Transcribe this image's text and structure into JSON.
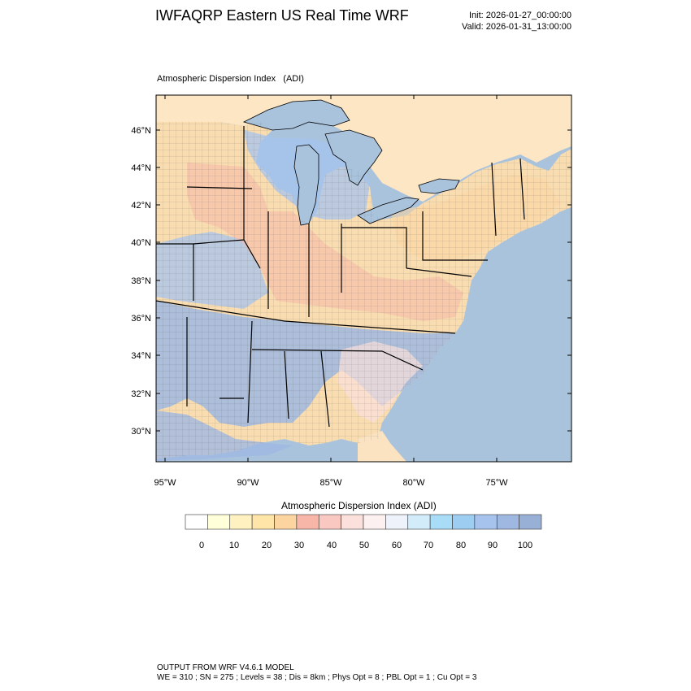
{
  "header": {
    "title": "IWFAQRP Eastern US Real Time WRF",
    "init": "Init: 2026-01-27_00:00:00",
    "valid": "Valid: 2026-01-31_13:00:00"
  },
  "map": {
    "plot_title": "Atmospheric Dispersion Index   (ADI)",
    "lat_labels": [
      "46°N",
      "44°N",
      "42°N",
      "40°N",
      "38°N",
      "36°N",
      "34°N",
      "32°N",
      "30°N"
    ],
    "lon_labels": [
      "95°W",
      "90°W",
      "85°W",
      "80°W",
      "75°W"
    ],
    "colors": {
      "ocean": "#a9c3dd",
      "land": "#f9ddb0",
      "lake": "#a9c3dd",
      "canada": "#fce6c4"
    }
  },
  "legend": {
    "title": "Atmospheric Dispersion Index  (ADI)",
    "tick_labels": [
      "0",
      "10",
      "20",
      "30",
      "40",
      "50",
      "60",
      "70",
      "80",
      "90",
      "100"
    ],
    "colors": [
      "#ffffff",
      "#ffffd9",
      "#fff2c0",
      "#ffe6a8",
      "#fcd4a0",
      "#f7b6a8",
      "#f9c8c0",
      "#fbe0dc",
      "#fdf0f0",
      "#eef2fb",
      "#d2ecfa",
      "#a8dcf7",
      "#9ecdf2",
      "#a6c3ee",
      "#9fb8e2",
      "#99b0d6"
    ]
  },
  "footer": {
    "line1": "OUTPUT FROM WRF V4.6.1 MODEL",
    "line2": "WE = 310 ; SN = 275 ; Levels = 38 ; Dis = 8km ; Phys Opt = 8 ; PBL Opt = 1 ; Cu Opt = 3"
  }
}
